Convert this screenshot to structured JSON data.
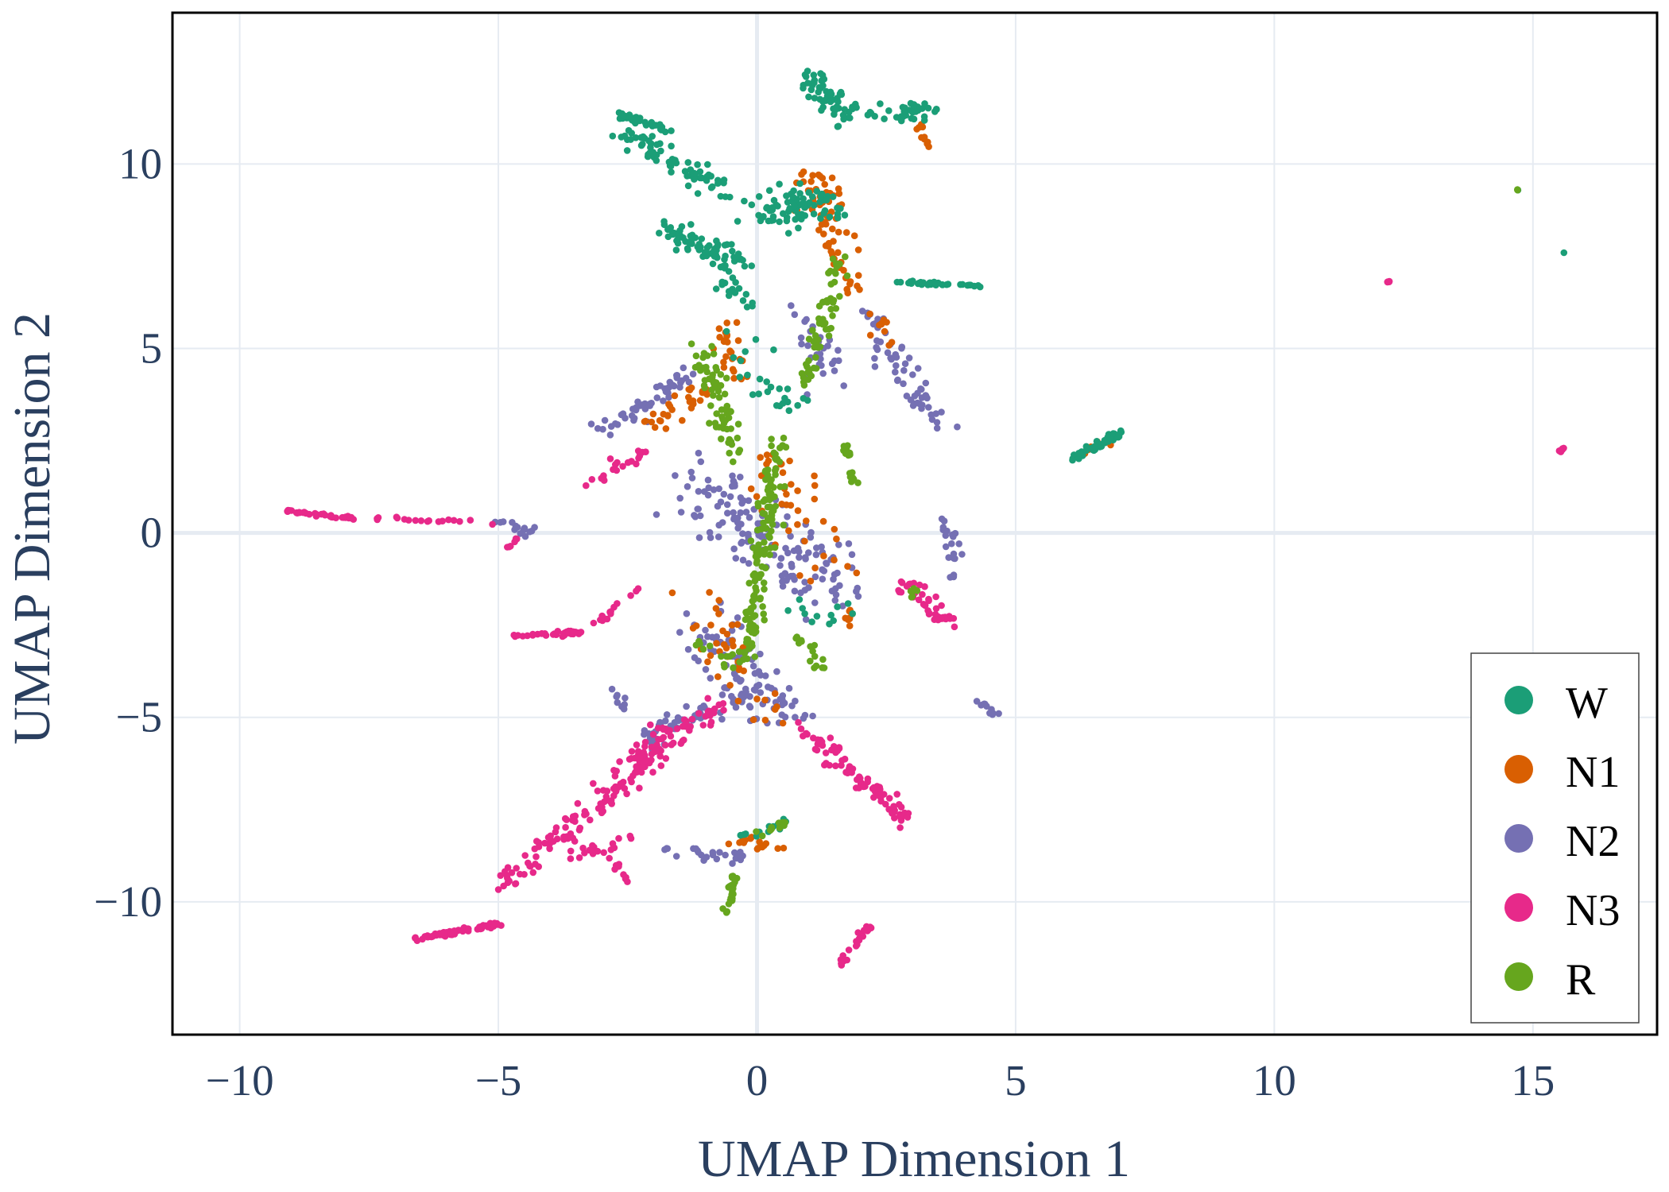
{
  "chart_data": {
    "type": "scatter",
    "title": "",
    "xlabel": "UMAP Dimension 1",
    "ylabel": "UMAP Dimension 2",
    "xlim": [
      -11.3,
      17.4
    ],
    "ylim": [
      -13.6,
      14.1
    ],
    "grid": true,
    "legend_position": "bottom-right",
    "xticks": [
      {
        "value": -10,
        "label": "−10"
      },
      {
        "value": -5,
        "label": "−5"
      },
      {
        "value": 0,
        "label": "0"
      },
      {
        "value": 5,
        "label": "5"
      },
      {
        "value": 10,
        "label": "10"
      },
      {
        "value": 15,
        "label": "15"
      }
    ],
    "yticks": [
      {
        "value": -10,
        "label": "−10"
      },
      {
        "value": -5,
        "label": "−5"
      },
      {
        "value": 0,
        "label": "0"
      },
      {
        "value": 5,
        "label": "5"
      },
      {
        "value": 10,
        "label": "10"
      }
    ],
    "series": [
      {
        "name": "W",
        "color": "#1b9e77",
        "clusters": [
          {
            "from": [
              -2.7,
              11.4
            ],
            "to": [
              -1.7,
              10.9
            ],
            "n": 40,
            "spread": 0.1
          },
          {
            "from": [
              -2.5,
              10.8
            ],
            "to": [
              -0.6,
              9.3
            ],
            "n": 70,
            "spread": 0.3
          },
          {
            "from": [
              -1.9,
              8.3
            ],
            "to": [
              -0.2,
              7.4
            ],
            "n": 60,
            "spread": 0.3
          },
          {
            "from": [
              -0.9,
              7.7
            ],
            "to": [
              -0.3,
              6.3
            ],
            "n": 30,
            "spread": 0.3
          },
          {
            "from": [
              0.0,
              8.7
            ],
            "to": [
              1.5,
              9.0
            ],
            "n": 80,
            "spread": 0.5
          },
          {
            "from": [
              1.0,
              12.4
            ],
            "to": [
              1.8,
              11.1
            ],
            "n": 60,
            "spread": 0.3
          },
          {
            "from": [
              2.4,
              11.2
            ],
            "to": [
              3.3,
              11.6
            ],
            "n": 35,
            "spread": 0.3
          },
          {
            "from": [
              2.7,
              6.8
            ],
            "to": [
              4.3,
              6.7
            ],
            "n": 40,
            "spread": 0.04
          },
          {
            "from": [
              6.1,
              2.0
            ],
            "to": [
              7.0,
              2.7
            ],
            "n": 50,
            "spread": 0.1
          },
          {
            "from": [
              -0.3,
              5.0
            ],
            "to": [
              0.8,
              3.0
            ],
            "n": 25,
            "spread": 0.6
          },
          {
            "from": [
              0.8,
              -2.0
            ],
            "to": [
              1.8,
              -2.4
            ],
            "n": 12,
            "spread": 0.4
          },
          {
            "from": [
              -0.5,
              -8.4
            ],
            "to": [
              0.7,
              -7.8
            ],
            "n": 14,
            "spread": 0.2
          },
          {
            "from": [
              14.7,
              9.3
            ],
            "to": [
              14.7,
              9.3
            ],
            "n": 1,
            "spread": 0.02
          },
          {
            "from": [
              15.6,
              7.6
            ],
            "to": [
              15.6,
              7.6
            ],
            "n": 1,
            "spread": 0.02
          }
        ]
      },
      {
        "name": "N1",
        "color": "#d95f02",
        "clusters": [
          {
            "from": [
              1.0,
              9.8
            ],
            "to": [
              1.9,
              6.5
            ],
            "n": 70,
            "spread": 0.4
          },
          {
            "from": [
              -0.7,
              5.8
            ],
            "to": [
              -0.4,
              4.2
            ],
            "n": 25,
            "spread": 0.3
          },
          {
            "from": [
              -2.1,
              3.0
            ],
            "to": [
              -1.1,
              3.8
            ],
            "n": 30,
            "spread": 0.3
          },
          {
            "from": [
              0.3,
              2.0
            ],
            "to": [
              1.3,
              -1.0
            ],
            "n": 40,
            "spread": 0.7
          },
          {
            "from": [
              -1.0,
              -2.0
            ],
            "to": [
              0.2,
              -5.0
            ],
            "n": 40,
            "spread": 0.5
          },
          {
            "from": [
              1.8,
              -2.1
            ],
            "to": [
              1.8,
              -2.4
            ],
            "n": 8,
            "spread": 0.1
          },
          {
            "from": [
              -0.5,
              -8.3
            ],
            "to": [
              0.6,
              -8.6
            ],
            "n": 15,
            "spread": 0.15
          },
          {
            "from": [
              2.2,
              6.0
            ],
            "to": [
              2.7,
              4.6
            ],
            "n": 10,
            "spread": 0.3
          },
          {
            "from": [
              3.1,
              11.1
            ],
            "to": [
              3.3,
              10.4
            ],
            "n": 10,
            "spread": 0.1
          },
          {
            "from": [
              6.3,
              2.2
            ],
            "to": [
              6.8,
              2.5
            ],
            "n": 8,
            "spread": 0.1
          }
        ]
      },
      {
        "name": "N2",
        "color": "#7570b3",
        "clusters": [
          {
            "from": [
              -1.4,
              1.6
            ],
            "to": [
              1.6,
              -1.6
            ],
            "n": 150,
            "spread": 0.9
          },
          {
            "from": [
              -1.0,
              -2.5
            ],
            "to": [
              0.6,
              -5.0
            ],
            "n": 90,
            "spread": 0.6
          },
          {
            "from": [
              -3.0,
              2.8
            ],
            "to": [
              -1.3,
              4.3
            ],
            "n": 50,
            "spread": 0.25
          },
          {
            "from": [
              -2.2,
              -5.6
            ],
            "to": [
              -0.3,
              -4.4
            ],
            "n": 60,
            "spread": 0.35
          },
          {
            "from": [
              2.1,
              6.0
            ],
            "to": [
              3.6,
              2.8
            ],
            "n": 60,
            "spread": 0.3
          },
          {
            "from": [
              3.7,
              0.3
            ],
            "to": [
              3.8,
              -1.2
            ],
            "n": 20,
            "spread": 0.15
          },
          {
            "from": [
              -1.8,
              -8.6
            ],
            "to": [
              -0.3,
              -8.8
            ],
            "n": 25,
            "spread": 0.2
          },
          {
            "from": [
              4.2,
              -4.5
            ],
            "to": [
              4.6,
              -4.9
            ],
            "n": 10,
            "spread": 0.08
          },
          {
            "from": [
              -5.0,
              0.3
            ],
            "to": [
              -4.4,
              0.0
            ],
            "n": 15,
            "spread": 0.15
          },
          {
            "from": [
              -2.8,
              -4.1
            ],
            "to": [
              -2.6,
              -4.7
            ],
            "n": 8,
            "spread": 0.1
          },
          {
            "from": [
              0.8,
              6.0
            ],
            "to": [
              1.5,
              4.0
            ],
            "n": 30,
            "spread": 0.5
          }
        ]
      },
      {
        "name": "N3",
        "color": "#e7298a",
        "clusters": [
          {
            "from": [
              -9.1,
              0.6
            ],
            "to": [
              -7.8,
              0.4
            ],
            "n": 40,
            "spread": 0.04
          },
          {
            "from": [
              -7.6,
              0.4
            ],
            "to": [
              -5.0,
              0.3
            ],
            "n": 18,
            "spread": 0.05
          },
          {
            "from": [
              -4.8,
              -2.8
            ],
            "to": [
              -3.4,
              -2.7
            ],
            "n": 35,
            "spread": 0.06
          },
          {
            "from": [
              -3.2,
              -2.6
            ],
            "to": [
              -2.3,
              -1.5
            ],
            "n": 15,
            "spread": 0.08
          },
          {
            "from": [
              -6.6,
              -11.0
            ],
            "to": [
              -5.0,
              -10.6
            ],
            "n": 60,
            "spread": 0.07
          },
          {
            "from": [
              -5.0,
              -9.6
            ],
            "to": [
              -0.7,
              -4.6
            ],
            "n": 130,
            "spread": 0.3
          },
          {
            "from": [
              -2.7,
              -6.8
            ],
            "to": [
              -1.7,
              -5.2
            ],
            "n": 50,
            "spread": 0.3
          },
          {
            "from": [
              0.9,
              -5.3
            ],
            "to": [
              2.9,
              -7.8
            ],
            "n": 90,
            "spread": 0.2
          },
          {
            "from": [
              -3.3,
              1.3
            ],
            "to": [
              -2.2,
              2.2
            ],
            "n": 20,
            "spread": 0.15
          },
          {
            "from": [
              2.8,
              -1.3
            ],
            "to": [
              3.7,
              -2.4
            ],
            "n": 40,
            "spread": 0.2
          },
          {
            "from": [
              12.2,
              6.8
            ],
            "to": [
              12.2,
              6.8
            ],
            "n": 5,
            "spread": 0.03
          },
          {
            "from": [
              15.5,
              2.2
            ],
            "to": [
              15.6,
              2.3
            ],
            "n": 8,
            "spread": 0.03
          },
          {
            "from": [
              1.6,
              -11.7
            ],
            "to": [
              2.2,
              -10.6
            ],
            "n": 25,
            "spread": 0.08
          },
          {
            "from": [
              -2.7,
              -9.0
            ],
            "to": [
              -2.5,
              -9.5
            ],
            "n": 8,
            "spread": 0.08
          },
          {
            "from": [
              -4.8,
              -0.4
            ],
            "to": [
              -4.6,
              -0.1
            ],
            "n": 6,
            "spread": 0.05
          },
          {
            "from": [
              -3.6,
              -8.8
            ],
            "to": [
              -2.5,
              -8.3
            ],
            "n": 20,
            "spread": 0.25
          }
        ]
      },
      {
        "name": "R",
        "color": "#66a61e",
        "clusters": [
          {
            "from": [
              1.6,
              7.3
            ],
            "to": [
              0.9,
              4.0
            ],
            "n": 60,
            "spread": 0.18
          },
          {
            "from": [
              0.4,
              2.5
            ],
            "to": [
              -0.2,
              -3.5
            ],
            "n": 140,
            "spread": 0.2
          },
          {
            "from": [
              -1.1,
              5.0
            ],
            "to": [
              -0.4,
              2.2
            ],
            "n": 70,
            "spread": 0.3
          },
          {
            "from": [
              1.7,
              2.4
            ],
            "to": [
              1.9,
              1.3
            ],
            "n": 20,
            "spread": 0.08
          },
          {
            "from": [
              0.8,
              -2.8
            ],
            "to": [
              1.3,
              -3.7
            ],
            "n": 15,
            "spread": 0.15
          },
          {
            "from": [
              -0.6,
              -10.4
            ],
            "to": [
              -0.4,
              -9.2
            ],
            "n": 25,
            "spread": 0.07
          },
          {
            "from": [
              2.7,
              -1.2
            ],
            "to": [
              3.1,
              -1.8
            ],
            "n": 6,
            "spread": 0.1
          },
          {
            "from": [
              -1.2,
              -3.0
            ],
            "to": [
              -0.4,
              -3.6
            ],
            "n": 12,
            "spread": 0.2
          },
          {
            "from": [
              14.7,
              9.3
            ],
            "to": [
              14.7,
              9.3
            ],
            "n": 2,
            "spread": 0.01
          },
          {
            "from": [
              0.0,
              -8.2
            ],
            "to": [
              0.7,
              -7.8
            ],
            "n": 10,
            "spread": 0.1
          }
        ]
      }
    ]
  }
}
